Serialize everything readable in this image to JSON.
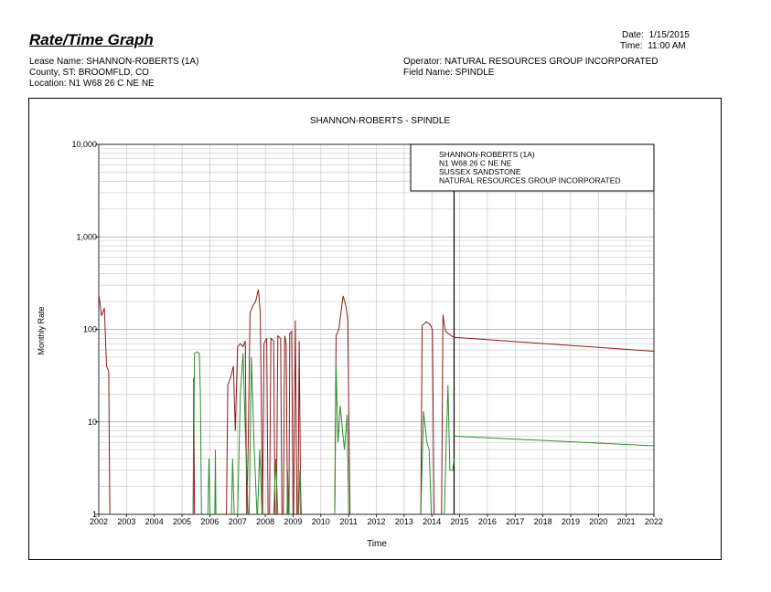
{
  "header": {
    "report_title": "Rate/Time Graph",
    "date_label": "Date:",
    "date_value": "1/15/2015",
    "time_label": "Time:",
    "time_value": "11:00 AM",
    "lease_line": "Lease Name: SHANNON-ROBERTS (1A)",
    "county_line": "County, ST: BROOMFLD, CO",
    "location_line": "Location: N1 W68 26 C NE NE",
    "operator_line": "Operator: NATURAL RESOURCES GROUP INCORPORATED",
    "field_line": "Field Name: SPINDLE"
  },
  "chart_data": {
    "type": "line",
    "title": "SHANNON-ROBERTS - SPINDLE",
    "xlabel": "Time",
    "ylabel": "Monthly Rate",
    "xlim": [
      2002,
      2022
    ],
    "ylim": [
      1,
      10000
    ],
    "yscale": "log",
    "grid": true,
    "x_ticks": [
      "2002",
      "2003",
      "2004",
      "2005",
      "2006",
      "2007",
      "2008",
      "2009",
      "2010",
      "2011",
      "2012",
      "2013",
      "2014",
      "2015",
      "2016",
      "2017",
      "2018",
      "2019",
      "2020",
      "2021",
      "2022"
    ],
    "y_ticks": [
      {
        "value": 1,
        "label": "1"
      },
      {
        "value": 10,
        "label": "10"
      },
      {
        "value": 100,
        "label": "100"
      },
      {
        "value": 1000,
        "label": "1,000"
      },
      {
        "value": 10000,
        "label": "10,000"
      }
    ],
    "forecast_start": 2014.8,
    "legend": {
      "placement": "top-right",
      "lines": [
        "SHANNON-ROBERTS (1A)",
        "N1 W68 26 C NE NE",
        "SUSSEX SANDSTONE",
        "NATURAL RESOURCES GROUP INCORPORATED"
      ]
    },
    "series": [
      {
        "color": "#8b1a1a",
        "segments": [
          [
            [
              2002.0,
              240
            ],
            [
              2002.1,
              140
            ],
            [
              2002.2,
              170
            ],
            [
              2002.28,
              40
            ],
            [
              2002.36,
              35
            ],
            [
              2002.4,
              1
            ]
          ],
          [
            [
              2005.4,
              1
            ],
            [
              2005.42,
              30
            ],
            [
              2005.45,
              1
            ]
          ],
          [
            [
              2006.6,
              1
            ],
            [
              2006.65,
              25
            ],
            [
              2006.75,
              30
            ],
            [
              2006.85,
              40
            ],
            [
              2006.92,
              8
            ],
            [
              2007.0,
              65
            ],
            [
              2007.1,
              70
            ],
            [
              2007.2,
              65
            ],
            [
              2007.28,
              75
            ],
            [
              2007.33,
              1
            ]
          ],
          [
            [
              2007.33,
              1
            ],
            [
              2007.38,
              5
            ],
            [
              2007.45,
              150
            ],
            [
              2007.55,
              180
            ],
            [
              2007.65,
              200
            ],
            [
              2007.75,
              270
            ],
            [
              2007.82,
              150
            ],
            [
              2007.9,
              1
            ]
          ],
          [
            [
              2007.9,
              1
            ],
            [
              2007.95,
              70
            ],
            [
              2008.05,
              80
            ],
            [
              2008.1,
              1
            ]
          ],
          [
            [
              2008.15,
              1
            ],
            [
              2008.2,
              80
            ],
            [
              2008.3,
              75
            ],
            [
              2008.35,
              1
            ]
          ],
          [
            [
              2008.4,
              1
            ],
            [
              2008.45,
              85
            ],
            [
              2008.55,
              80
            ],
            [
              2008.6,
              1
            ]
          ],
          [
            [
              2008.65,
              1
            ],
            [
              2008.7,
              85
            ],
            [
              2008.75,
              70
            ],
            [
              2008.8,
              1
            ]
          ],
          [
            [
              2008.85,
              1
            ],
            [
              2008.88,
              90
            ],
            [
              2008.95,
              95
            ],
            [
              2009.0,
              1
            ]
          ],
          [
            [
              2009.02,
              1
            ],
            [
              2009.08,
              125
            ],
            [
              2009.14,
              1
            ]
          ],
          [
            [
              2009.18,
              1
            ],
            [
              2009.22,
              75
            ],
            [
              2009.28,
              1
            ]
          ],
          [
            [
              2010.5,
              1
            ],
            [
              2010.55,
              85
            ],
            [
              2010.65,
              100
            ],
            [
              2010.72,
              150
            ],
            [
              2010.8,
              230
            ],
            [
              2010.9,
              180
            ],
            [
              2010.97,
              130
            ],
            [
              2011.05,
              1
            ]
          ],
          [
            [
              2013.6,
              1
            ],
            [
              2013.65,
              110
            ],
            [
              2013.8,
              120
            ],
            [
              2013.92,
              115
            ],
            [
              2014.02,
              100
            ],
            [
              2014.08,
              1
            ]
          ],
          [
            [
              2014.35,
              1
            ],
            [
              2014.4,
              145
            ],
            [
              2014.45,
              110
            ],
            [
              2014.5,
              95
            ],
            [
              2014.6,
              90
            ],
            [
              2014.7,
              85
            ],
            [
              2014.8,
              82
            ]
          ]
        ],
        "forecast": [
          [
            2014.8,
            82
          ],
          [
            2022,
            58
          ]
        ]
      },
      {
        "color": "#2e8b2e",
        "segments": [
          [
            [
              2005.4,
              1
            ],
            [
              2005.45,
              55
            ],
            [
              2005.55,
              57
            ],
            [
              2005.62,
              55
            ],
            [
              2005.66,
              20
            ],
            [
              2005.7,
              1
            ]
          ],
          [
            [
              2005.93,
              1
            ],
            [
              2005.97,
              4
            ],
            [
              2006.01,
              1
            ]
          ],
          [
            [
              2006.18,
              1
            ],
            [
              2006.2,
              5
            ],
            [
              2006.22,
              1
            ]
          ],
          [
            [
              2006.78,
              1
            ],
            [
              2006.82,
              4
            ],
            [
              2006.88,
              1
            ]
          ],
          [
            [
              2007.0,
              1
            ],
            [
              2007.1,
              20
            ],
            [
              2007.2,
              55
            ],
            [
              2007.28,
              8
            ],
            [
              2007.38,
              1
            ]
          ],
          [
            [
              2007.42,
              1
            ],
            [
              2007.5,
              50
            ],
            [
              2007.6,
              5
            ],
            [
              2007.7,
              1
            ]
          ],
          [
            [
              2007.72,
              1
            ],
            [
              2007.8,
              5
            ],
            [
              2007.88,
              1
            ]
          ],
          [
            [
              2008.3,
              1
            ],
            [
              2008.38,
              4
            ],
            [
              2008.45,
              1
            ]
          ],
          [
            [
              2008.78,
              1
            ],
            [
              2008.8,
              3
            ],
            [
              2008.84,
              1
            ]
          ],
          [
            [
              2009.2,
              1
            ],
            [
              2009.25,
              3
            ],
            [
              2009.3,
              1
            ]
          ],
          [
            [
              2010.5,
              1
            ],
            [
              2010.55,
              40
            ],
            [
              2010.62,
              6
            ],
            [
              2010.7,
              15
            ],
            [
              2010.78,
              8
            ],
            [
              2010.85,
              5
            ],
            [
              2010.95,
              12
            ],
            [
              2011.0,
              1
            ]
          ],
          [
            [
              2013.6,
              1
            ],
            [
              2013.7,
              13
            ],
            [
              2013.82,
              6
            ],
            [
              2013.9,
              5
            ],
            [
              2013.98,
              1
            ]
          ],
          [
            [
              2014.45,
              1
            ],
            [
              2014.5,
              4
            ],
            [
              2014.58,
              25
            ],
            [
              2014.65,
              3
            ],
            [
              2014.75,
              3
            ],
            [
              2014.8,
              4
            ]
          ]
        ],
        "forecast": [
          [
            2014.8,
            7
          ],
          [
            2022,
            5.5
          ]
        ]
      }
    ]
  }
}
